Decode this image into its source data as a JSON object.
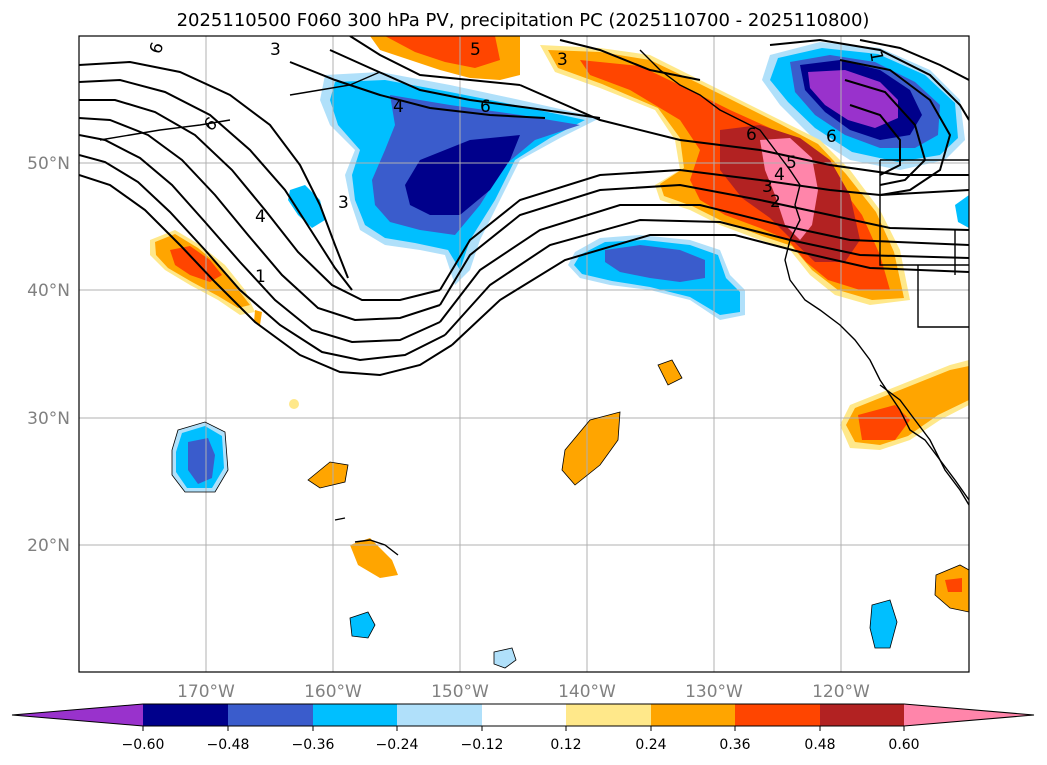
{
  "title": "2025110500 F060 300 hPa PV, precipitation PC (2025110700 - 2025110800)",
  "map": {
    "lon_range": [
      -180,
      -110
    ],
    "lat_range": [
      10,
      60
    ],
    "lat_labels": [
      "50°N",
      "40°N",
      "30°N",
      "20°N"
    ],
    "lon_labels": [
      "170°W",
      "160°W",
      "150°W",
      "140°W",
      "130°W",
      "120°W"
    ],
    "contour_labels": [
      "6",
      "3",
      "5",
      "6",
      "4",
      "3",
      "6",
      "4",
      "3",
      "1",
      "6",
      "5",
      "4",
      "3",
      "2",
      "1",
      "6"
    ]
  },
  "colorbar": {
    "ticks": [
      "−0.60",
      "−0.48",
      "−0.36",
      "−0.24",
      "−0.12",
      "0.12",
      "0.24",
      "0.36",
      "0.48",
      "0.60"
    ],
    "colors": {
      "lt_-0.60": "#9932cc",
      "-0.60_-0.48": "#00008b",
      "-0.48_-0.36": "#3a5ccc",
      "-0.36_-0.24": "#00bfff",
      "-0.24_-0.12": "#b0e0fa",
      "-0.12_0.12": "#ffffff",
      "0.12_0.24": "#ffe88a",
      "0.24_0.36": "#ffa500",
      "0.36_0.48": "#ff4500",
      "0.48_0.60": "#b22222",
      "gt_0.60": "#ff85aa"
    }
  }
}
